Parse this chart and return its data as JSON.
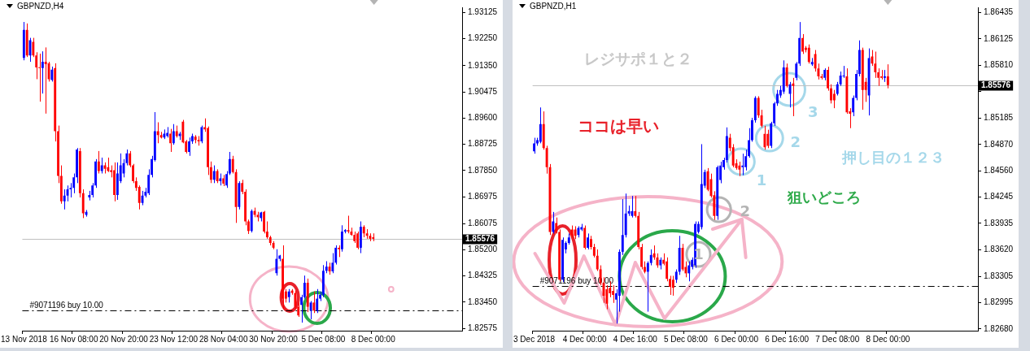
{
  "chart_data": [
    {
      "type": "candlestick",
      "title": "GBPNZD,H4",
      "categories": [
        "13 Nov 2018",
        null,
        null,
        null,
        null,
        null,
        null,
        null,
        null,
        null,
        null,
        null,
        null,
        null,
        null,
        null,
        "16 Nov 08:00",
        null,
        null,
        null,
        null,
        null,
        null,
        null,
        null,
        null,
        null,
        null,
        null,
        null,
        null,
        null,
        "20 Nov 20:00",
        null,
        null,
        null,
        null,
        null,
        null,
        null,
        null,
        null,
        null,
        null,
        null,
        null,
        null,
        null,
        "23 Nov 12:00",
        null,
        null,
        null,
        null,
        null,
        null,
        null,
        null,
        null,
        null,
        null,
        null,
        null,
        null,
        null,
        "28 Nov 04:00",
        null,
        null,
        null,
        null,
        null,
        null,
        null,
        null,
        null,
        null,
        null,
        null,
        null,
        null,
        null,
        "30 Nov 20:00",
        null,
        null,
        null,
        null,
        null,
        null,
        null,
        null,
        null,
        null,
        null,
        null,
        null,
        null,
        null,
        "5 Dec 08:00",
        null,
        null,
        null,
        null,
        null,
        null,
        null,
        null,
        null,
        null,
        null,
        null,
        null,
        null,
        null,
        "8 Dec 00:00",
        null,
        null,
        null,
        null,
        null,
        null,
        null,
        null,
        null,
        null,
        null,
        null,
        null,
        null,
        null,
        null,
        null,
        null,
        null,
        null,
        null,
        null,
        null,
        null,
        null,
        null,
        null,
        null
      ],
      "ohlc": [
        [
          1.9161,
          1.9281,
          1.9153,
          1.9255
        ],
        [
          1.9255,
          1.9276,
          1.9164,
          1.9169
        ],
        [
          1.9169,
          1.9228,
          1.9148,
          1.922
        ],
        [
          1.9215,
          1.9228,
          1.9164,
          1.9169
        ],
        [
          1.9169,
          1.918,
          1.909,
          1.9129
        ],
        [
          1.9129,
          1.9175,
          1.9015,
          1.9127
        ],
        [
          1.9127,
          1.9183,
          1.9042,
          1.9148
        ],
        [
          1.9148,
          1.9196,
          1.8975,
          1.914
        ],
        [
          1.9143,
          1.9148,
          1.9082,
          1.909
        ],
        [
          1.9087,
          1.9132,
          1.9082,
          1.9122
        ],
        [
          1.9127,
          1.9143,
          1.8882,
          1.8916
        ],
        [
          1.8916,
          1.8935,
          1.8743,
          1.8767
        ],
        [
          1.8767,
          1.8802,
          1.8674,
          1.8682
        ],
        [
          1.8682,
          1.8722,
          1.8655,
          1.8701
        ],
        [
          1.8701,
          1.8735,
          1.8682,
          1.8722
        ],
        [
          1.8722,
          1.8743,
          1.8695,
          1.8727
        ],
        [
          1.8727,
          1.8775,
          1.8709,
          1.8762
        ],
        [
          1.8762,
          1.886,
          1.8743,
          1.8855
        ],
        [
          1.885,
          1.886,
          1.8695,
          1.8709
        ],
        [
          1.8709,
          1.8722,
          1.8626,
          1.8642
        ],
        [
          1.8637,
          1.8653,
          1.8631,
          1.8647
        ],
        [
          1.8695,
          1.8717,
          1.8685,
          1.8703
        ],
        [
          1.8703,
          1.8743,
          1.8695,
          1.8735
        ],
        [
          1.8735,
          1.8823,
          1.8727,
          1.8815
        ],
        [
          1.8815,
          1.885,
          1.8775,
          1.8783
        ],
        [
          1.8783,
          1.8828,
          1.8775,
          1.8802
        ],
        [
          1.8802,
          1.8812,
          1.8775,
          1.8791
        ],
        [
          1.8796,
          1.8828,
          1.878,
          1.8783
        ],
        [
          1.8786,
          1.8802,
          1.8762,
          1.878
        ],
        [
          1.8786,
          1.8812,
          1.8682,
          1.8703
        ],
        [
          1.8703,
          1.8812,
          1.8687,
          1.8775
        ],
        [
          1.8749,
          1.8842,
          1.8743,
          1.8802
        ],
        [
          1.8775,
          1.8823,
          1.8762,
          1.881
        ],
        [
          1.881,
          1.8855,
          1.8802,
          1.8842
        ],
        [
          1.8842,
          1.885,
          1.8796,
          1.8802
        ],
        [
          1.8802,
          1.8807,
          1.8743,
          1.8749
        ],
        [
          1.8749,
          1.8762,
          1.8717,
          1.8727
        ],
        [
          1.873,
          1.8735,
          1.8655,
          1.8677
        ],
        [
          1.8677,
          1.8717,
          1.8669,
          1.8701
        ],
        [
          1.8701,
          1.8727,
          1.8695,
          1.8714
        ],
        [
          1.8709,
          1.8789,
          1.8703,
          1.877
        ],
        [
          1.877,
          1.8834,
          1.8762,
          1.8823
        ],
        [
          1.882,
          1.898,
          1.8815,
          1.8916
        ],
        [
          1.8916,
          1.8946,
          1.8876,
          1.8903
        ],
        [
          1.8903,
          1.8914,
          1.8892,
          1.8895
        ],
        [
          1.8895,
          1.8922,
          1.889,
          1.8908
        ],
        [
          1.89,
          1.893,
          1.8895,
          1.8911
        ],
        [
          1.8908,
          1.8924,
          1.8847,
          1.8876
        ],
        [
          1.8876,
          1.894,
          1.8871,
          1.8916
        ],
        [
          1.8916,
          1.8935,
          1.8895,
          1.89
        ],
        [
          1.89,
          1.8914,
          1.8887,
          1.8908
        ],
        [
          1.8948,
          1.8954,
          1.8876,
          1.8879
        ],
        [
          1.8882,
          1.8887,
          1.8842,
          1.8847
        ],
        [
          1.8847,
          1.8895,
          1.8834,
          1.8882
        ],
        [
          1.8882,
          1.8908,
          1.8874,
          1.89
        ],
        [
          1.8898,
          1.8903,
          1.8876,
          1.8887
        ],
        [
          1.8887,
          1.89,
          1.8868,
          1.8882
        ],
        [
          1.8882,
          1.8935,
          1.8876,
          1.893
        ],
        [
          1.893,
          1.8959,
          1.8914,
          1.8922
        ],
        [
          1.8927,
          1.8932,
          1.877,
          1.8796
        ],
        [
          1.8796,
          1.8815,
          1.8743,
          1.8754
        ],
        [
          1.8754,
          1.8802,
          1.8743,
          1.8783
        ],
        [
          1.8783,
          1.8789,
          1.8743,
          1.8749
        ],
        [
          1.8749,
          1.8775,
          1.8735,
          1.8759
        ],
        [
          1.8759,
          1.877,
          1.8733,
          1.8741
        ],
        [
          1.8735,
          1.8783,
          1.8727,
          1.8773
        ],
        [
          1.8775,
          1.8847,
          1.877,
          1.8823
        ],
        [
          1.8823,
          1.8834,
          1.8775,
          1.878
        ],
        [
          1.878,
          1.8789,
          1.861,
          1.8663
        ],
        [
          1.8663,
          1.8749,
          1.8655,
          1.8743
        ],
        [
          1.8743,
          1.8754,
          1.8706,
          1.8714
        ],
        [
          1.8714,
          1.8722,
          1.8602,
          1.8615
        ],
        [
          1.8615,
          1.8621,
          1.8573,
          1.8583
        ],
        [
          1.8583,
          1.8655,
          1.8578,
          1.865
        ],
        [
          1.865,
          1.8661,
          1.8629,
          1.8637
        ],
        [
          1.8637,
          1.8647,
          1.8615,
          1.8629
        ],
        [
          1.8626,
          1.8647,
          1.8615,
          1.8645
        ],
        [
          1.8647,
          1.865,
          1.8575,
          1.8581
        ],
        [
          1.8581,
          1.8615,
          1.8557,
          1.8562
        ],
        [
          1.8562,
          1.8567,
          1.8535,
          1.8543
        ],
        [
          1.8543,
          1.8549,
          1.8522,
          1.8527
        ],
        [
          1.8442,
          1.8522,
          1.8434,
          1.849
        ],
        [
          1.849,
          1.8503,
          1.8482,
          1.8501
        ],
        [
          1.849,
          1.8535,
          1.8322,
          1.8357
        ],
        [
          1.8381,
          1.8389,
          1.8344,
          1.8357
        ],
        [
          1.8362,
          1.8389,
          1.8344,
          1.8381
        ],
        [
          1.8384,
          1.8389,
          1.837,
          1.8376
        ],
        [
          1.8376,
          1.8384,
          1.8322,
          1.833
        ],
        [
          1.833,
          1.8344,
          1.8296,
          1.8301
        ],
        [
          1.8336,
          1.837,
          1.8277,
          1.8362
        ],
        [
          1.8362,
          1.8434,
          1.8357,
          1.841
        ],
        [
          1.841,
          1.8424,
          1.8312,
          1.833
        ],
        [
          1.8317,
          1.8349,
          1.8288,
          1.8344
        ],
        [
          1.8344,
          1.8381,
          1.8309,
          1.8317
        ],
        [
          1.8317,
          1.8389,
          1.8309,
          1.8357
        ],
        [
          1.8357,
          1.8381,
          1.8349,
          1.837
        ],
        [
          1.837,
          1.8469,
          1.8362,
          1.845
        ],
        [
          1.845,
          1.8482,
          1.8442,
          1.8464
        ],
        [
          1.8464,
          1.8477,
          1.8437,
          1.8448
        ],
        [
          1.8448,
          1.8509,
          1.8442,
          1.8477
        ],
        [
          1.8477,
          1.8535,
          1.8471,
          1.8527
        ],
        [
          1.8527,
          1.8535,
          1.8496,
          1.8522
        ],
        [
          1.8522,
          1.8602,
          1.8514,
          1.8581
        ],
        [
          1.8581,
          1.8589,
          1.8575,
          1.8586
        ],
        [
          1.8586,
          1.8634,
          1.8575,
          1.8581
        ],
        [
          1.8581,
          1.8594,
          1.8567,
          1.857
        ],
        [
          1.857,
          1.8581,
          1.8543,
          1.8549
        ],
        [
          1.8575,
          1.8581,
          1.8522,
          1.8527
        ],
        [
          1.8527,
          1.8615,
          1.8509,
          1.8597
        ],
        [
          1.8597,
          1.8602,
          1.8562,
          1.8575
        ],
        [
          1.8575,
          1.8589,
          1.8557,
          1.8567
        ],
        [
          1.8567,
          1.8575,
          1.8549,
          1.8557
        ],
        [
          1.8562,
          1.8575,
          1.8549,
          1.8557
        ],
        null,
        null,
        null,
        null,
        null,
        null,
        null,
        null,
        null,
        null,
        null,
        null,
        null,
        null,
        null,
        null,
        null,
        null,
        null,
        null,
        null,
        null,
        null,
        null,
        null,
        null,
        null,
        null
      ],
      "colors": [
        "#0000ff",
        "#ff0000",
        "#0000ff",
        "#ff0000",
        "#ff0000",
        "#ff0000",
        "#0000ff",
        "#ff0000",
        "#ff0000",
        "#0000ff",
        "#ff0000",
        "#ff0000",
        "#ff0000",
        "#0000ff",
        "#0000ff",
        "#0000ff",
        "#0000ff",
        "#0000ff",
        "#ff0000",
        "#ff0000",
        "#0000ff",
        "#0000ff",
        "#0000ff",
        "#0000ff",
        "#ff0000",
        "#0000ff",
        "#ff0000",
        "#ff0000",
        "#ff0000",
        "#ff0000",
        "#0000ff",
        "#0000ff",
        "#0000ff",
        "#0000ff",
        "#ff0000",
        "#ff0000",
        "#ff0000",
        "#ff0000",
        "#0000ff",
        "#0000ff",
        "#0000ff",
        "#0000ff",
        "#0000ff",
        "#ff0000",
        "#ff0000",
        "#0000ff",
        "#0000ff",
        "#ff0000",
        "#0000ff",
        "#ff0000",
        "#0000ff",
        "#ff0000",
        "#ff0000",
        "#0000ff",
        "#0000ff",
        "#ff0000",
        "#ff0000",
        "#0000ff",
        "#ff0000",
        "#ff0000",
        "#ff0000",
        "#0000ff",
        "#ff0000",
        "#0000ff",
        "#ff0000",
        "#0000ff",
        "#0000ff",
        "#ff0000",
        "#ff0000",
        "#0000ff",
        "#ff0000",
        "#ff0000",
        "#ff0000",
        "#0000ff",
        "#ff0000",
        "#ff0000",
        "#0000ff",
        "#ff0000",
        "#ff0000",
        "#ff0000",
        "#ff0000",
        "#0000ff",
        "#0000ff",
        "#ff0000",
        "#ff0000",
        "#0000ff",
        "#ff0000",
        "#ff0000",
        "#ff0000",
        "#0000ff",
        "#0000ff",
        "#ff0000",
        "#0000ff",
        "#ff0000",
        "#0000ff",
        "#0000ff",
        "#0000ff",
        "#0000ff",
        "#ff0000",
        "#0000ff",
        "#0000ff",
        "#ff0000",
        "#0000ff",
        "#0000ff",
        "#ff0000",
        "#ff0000",
        "#ff0000",
        "#ff0000",
        "#0000ff",
        "#ff0000",
        "#ff0000",
        "#ff0000",
        "#ff0000",
        null,
        null,
        null,
        null,
        null,
        null,
        null,
        null,
        null,
        null,
        null,
        null,
        null,
        null,
        null,
        null,
        null,
        null,
        null,
        null,
        null,
        null,
        null,
        null,
        null,
        null,
        null,
        null
      ],
      "ylim": [
        1.825,
        1.933
      ],
      "yticks": [
        {
          "value": 1.93125,
          "label": "1.93125"
        },
        {
          "value": 1.9225,
          "label": "1.92250"
        },
        {
          "value": 1.9135,
          "label": "1.91350"
        },
        {
          "value": 1.90475,
          "label": "1.90475"
        },
        {
          "value": 1.896,
          "label": "1.89600"
        },
        {
          "value": 1.88725,
          "label": "1.88725"
        },
        {
          "value": 1.8785,
          "label": "1.87850"
        },
        {
          "value": 1.86975,
          "label": "1.86975"
        },
        {
          "value": 1.86075,
          "label": "1.86075"
        },
        {
          "value": 1.852,
          "label": "1.85200"
        },
        {
          "value": 1.84325,
          "label": "1.84325"
        },
        {
          "value": 1.8345,
          "label": "1.83450"
        },
        {
          "value": 1.82575,
          "label": "1.82575"
        }
      ],
      "grid": false,
      "ref_lines": [
        {
          "axis": "y",
          "value": 1.85576,
          "label": "1.85576",
          "color": "#c0c0c0",
          "line_style": "solid"
        },
        {
          "axis": "y",
          "value": 1.8319,
          "label": "#9071196 buy 10.00",
          "color": "#000000",
          "line_style": "dashed"
        }
      ]
    },
    {
      "type": "candlestick",
      "title": "GBPNZD,H1",
      "categories": [
        "3 Dec 2018",
        null,
        null,
        null,
        null,
        null,
        null,
        null,
        null,
        null,
        null,
        null,
        null,
        null,
        null,
        null,
        "4 Dec 00:00",
        null,
        null,
        null,
        null,
        null,
        null,
        null,
        null,
        null,
        null,
        null,
        null,
        null,
        null,
        null,
        "4 Dec 16:00",
        null,
        null,
        null,
        null,
        null,
        null,
        null,
        null,
        null,
        null,
        null,
        null,
        null,
        null,
        null,
        "5 Dec 08:00",
        null,
        null,
        null,
        null,
        null,
        null,
        null,
        null,
        null,
        null,
        null,
        null,
        null,
        null,
        null,
        "6 Dec 00:00",
        null,
        null,
        null,
        null,
        null,
        null,
        null,
        null,
        null,
        null,
        null,
        null,
        null,
        null,
        null,
        "6 Dec 16:00",
        null,
        null,
        null,
        null,
        null,
        null,
        null,
        null,
        null,
        null,
        null,
        null,
        null,
        null,
        null,
        "7 Dec 08:00",
        null,
        null,
        null,
        null,
        null,
        null,
        null,
        null,
        null,
        null,
        null,
        null,
        null,
        null,
        null,
        "8 Dec 00:00",
        null,
        null,
        null,
        null,
        null,
        null,
        null,
        null,
        null,
        null,
        null,
        null,
        null,
        null,
        null,
        null,
        null,
        null,
        null,
        null,
        null,
        null,
        null,
        null,
        null,
        null,
        null,
        null
      ],
      "ohlc": [
        [
          1.8479,
          1.84951,
          1.84762,
          1.84885
        ],
        [
          1.84885,
          1.84951,
          1.84856,
          1.84923
        ],
        [
          1.84904,
          1.85311,
          1.84885,
          1.85112
        ],
        [
          1.85112,
          1.85264,
          1.84809,
          1.84828
        ],
        [
          1.84828,
          1.84856,
          1.84525,
          1.84601
        ],
        [
          1.84601,
          1.84639,
          1.83796,
          1.83833
        ],
        [
          1.83833,
          1.8407,
          1.83814,
          1.83957
        ],
        [
          1.83938,
          1.84004,
          1.83814,
          1.83833
        ],
        [
          1.83833,
          1.83862,
          1.83246,
          1.83265
        ],
        [
          1.83265,
          1.83767,
          1.83237,
          1.83739
        ],
        [
          1.83625,
          1.8372,
          1.83578,
          1.83701
        ],
        [
          1.83701,
          1.83814,
          1.83682,
          1.83767
        ],
        [
          1.83862,
          1.83909,
          1.83767,
          1.83796
        ],
        [
          1.83862,
          1.839,
          1.83748,
          1.83786
        ],
        [
          1.83796,
          1.839,
          1.83767,
          1.83881
        ],
        [
          1.83862,
          1.83928,
          1.83843,
          1.8389
        ],
        [
          1.83881,
          1.83909,
          1.83625,
          1.83644
        ],
        [
          1.83644,
          1.83814,
          1.83625,
          1.83767
        ],
        [
          1.83748,
          1.83786,
          1.83625,
          1.83653
        ],
        [
          1.83653,
          1.83691,
          1.8353,
          1.83549
        ],
        [
          1.83549,
          1.83625,
          1.83369,
          1.83388
        ],
        [
          1.83388,
          1.83436,
          1.83199,
          1.83227
        ],
        [
          1.83227,
          1.83294,
          1.8299,
          1.83076
        ],
        [
          1.83151,
          1.83199,
          1.82915,
          1.82981
        ],
        [
          1.8317,
          1.83246,
          1.83057,
          1.83104
        ],
        [
          1.83132,
          1.83199,
          1.8299,
          1.83085
        ],
        [
          1.83028,
          1.83151,
          1.82744,
          1.83104
        ],
        [
          1.83076,
          1.83625,
          1.82886,
          1.83597
        ],
        [
          1.83597,
          1.84222,
          1.83559,
          1.83796
        ],
        [
          1.83796,
          1.84288,
          1.83767,
          1.84051
        ],
        [
          1.84051,
          1.84146,
          1.84023,
          1.8408
        ],
        [
          1.84023,
          1.8426,
          1.84004,
          1.8408
        ],
        [
          1.8408,
          1.8426,
          1.84004,
          1.84023
        ],
        [
          1.84023,
          1.8407,
          1.83625,
          1.83653
        ],
        [
          1.83653,
          1.83691,
          1.83388,
          1.83417
        ],
        [
          1.83417,
          1.83483,
          1.83341,
          1.8336
        ],
        [
          1.8336,
          1.83483,
          1.82886,
          1.83464
        ],
        [
          1.83464,
          1.83625,
          1.83436,
          1.83559
        ],
        [
          1.83578,
          1.83672,
          1.83502,
          1.8353
        ],
        [
          1.8353,
          1.83578,
          1.83407,
          1.83436
        ],
        [
          1.83436,
          1.8353,
          1.83388,
          1.83502
        ],
        [
          1.83502,
          1.83578,
          1.83436,
          1.83455
        ],
        [
          1.83483,
          1.8353,
          1.83246,
          1.83275
        ],
        [
          1.83275,
          1.83312,
          1.83085,
          1.8318
        ],
        [
          1.83265,
          1.83312,
          1.83076,
          1.8317
        ],
        [
          1.83265,
          1.83388,
          1.83227,
          1.8336
        ],
        [
          1.8336,
          1.83786,
          1.83322,
          1.83644
        ],
        [
          1.83644,
          1.83691,
          1.83369,
          1.83388
        ],
        [
          1.83417,
          1.83483,
          1.83294,
          1.83341
        ],
        [
          1.83341,
          1.83483,
          1.83246,
          1.83436
        ],
        [
          1.83417,
          1.8353,
          1.83388,
          1.83502
        ],
        [
          1.83436,
          1.83957,
          1.83407,
          1.83928
        ],
        [
          1.83833,
          1.83957,
          1.83814,
          1.83928
        ],
        [
          1.8389,
          1.84875,
          1.83862,
          1.84402
        ],
        [
          1.84383,
          1.84572,
          1.84354,
          1.84544
        ],
        [
          1.84553,
          1.84591,
          1.84316,
          1.84335
        ],
        [
          1.84459,
          1.84525,
          1.84241,
          1.8426
        ],
        [
          1.84269,
          1.84316,
          1.83976,
          1.84023
        ],
        [
          1.84023,
          1.8462,
          1.83976,
          1.84601
        ],
        [
          1.84449,
          1.84667,
          1.84411,
          1.8462
        ],
        [
          1.84601,
          1.84714,
          1.84572,
          1.84686
        ],
        [
          1.84686,
          1.85074,
          1.84657,
          1.8497
        ],
        [
          1.84951,
          1.84998,
          1.8479,
          1.84828
        ],
        [
          1.84837,
          1.84875,
          1.84601,
          1.8462
        ],
        [
          1.84648,
          1.84695,
          1.84572,
          1.84591
        ],
        [
          1.8462,
          1.84667,
          1.84496,
          1.84572
        ],
        [
          1.84601,
          1.84762,
          1.84506,
          1.8462
        ],
        [
          1.84601,
          1.84809,
          1.84563,
          1.84733
        ],
        [
          1.84733,
          1.85065,
          1.84714,
          1.84923
        ],
        [
          1.84923,
          1.85188,
          1.84904,
          1.8516
        ],
        [
          1.8516,
          1.85444,
          1.85131,
          1.85425
        ],
        [
          1.85425,
          1.85444,
          1.85188,
          1.85216
        ],
        [
          1.85216,
          1.85283,
          1.85074,
          1.85093
        ],
        [
          1.84998,
          1.85093,
          1.84809,
          1.84837
        ],
        [
          1.84998,
          1.85046,
          1.84828,
          1.84856
        ],
        [
          1.84856,
          1.85141,
          1.84828,
          1.85122
        ],
        [
          1.85122,
          1.85377,
          1.85093,
          1.85358
        ],
        [
          1.85358,
          1.85519,
          1.8533,
          1.85472
        ],
        [
          1.85453,
          1.85567,
          1.85425,
          1.85519
        ],
        [
          1.855,
          1.8587,
          1.85472,
          1.85785
        ],
        [
          1.85785,
          1.85832,
          1.85548,
          1.85567
        ],
        [
          1.85472,
          1.85614,
          1.85311,
          1.85586
        ],
        [
          1.85595,
          1.85662,
          1.85207,
          1.85567
        ],
        [
          1.85662,
          1.85851,
          1.85633,
          1.85832
        ],
        [
          1.85832,
          1.86325,
          1.85804,
          1.86135
        ],
        [
          1.86135,
          1.86182,
          1.85946,
          1.85974
        ],
        [
          1.86021,
          1.8604,
          1.85965,
          1.85993
        ],
        [
          1.86021,
          1.86059,
          1.85832,
          1.85851
        ],
        [
          1.85823,
          1.85898,
          1.85804,
          1.85851
        ],
        [
          1.85946,
          1.85993,
          1.85737,
          1.85775
        ],
        [
          1.85775,
          1.85832,
          1.85643,
          1.8568
        ],
        [
          1.8568,
          1.85709,
          1.85643,
          1.85662
        ],
        [
          1.85662,
          1.85775,
          1.85633,
          1.85756
        ],
        [
          1.85756,
          1.85794,
          1.8551,
          1.85538
        ],
        [
          1.85538,
          1.85586,
          1.85358,
          1.85396
        ],
        [
          1.85472,
          1.85519,
          1.85302,
          1.85396
        ],
        [
          1.85472,
          1.85614,
          1.85453,
          1.85586
        ],
        [
          1.85586,
          1.85737,
          1.85567,
          1.8569
        ],
        [
          1.8568,
          1.85804,
          1.85662,
          1.8569
        ],
        [
          1.8568,
          1.85775,
          1.85235,
          1.85254
        ],
        [
          1.85264,
          1.85302,
          1.85065,
          1.85235
        ],
        [
          1.85254,
          1.85453,
          1.85207,
          1.85425
        ],
        [
          1.85425,
          1.85756,
          1.85396,
          1.85709
        ],
        [
          1.85709,
          1.86107,
          1.8568,
          1.85993
        ],
        [
          1.85993,
          1.86021,
          1.85283,
          1.85519
        ],
        [
          1.85614,
          1.85662,
          1.85377,
          1.85519
        ],
        [
          1.85453,
          1.86012,
          1.85216,
          1.85898
        ],
        [
          1.85917,
          1.85993,
          1.85804,
          1.85832
        ],
        [
          1.85832,
          1.85974,
          1.85662,
          1.85728
        ],
        [
          1.85728,
          1.85775,
          1.85567,
          1.85662
        ],
        [
          1.8568,
          1.85756,
          1.85643,
          1.85662
        ],
        [
          1.85662,
          1.85756,
          1.85614,
          1.8568
        ],
        [
          1.8568,
          1.85823,
          1.85538,
          1.85576
        ],
        null,
        null,
        null,
        null,
        null,
        null,
        null,
        null,
        null,
        null,
        null,
        null,
        null,
        null,
        null,
        null,
        null,
        null,
        null,
        null,
        null,
        null,
        null,
        null,
        null,
        null,
        null,
        null
      ],
      "colors": [
        "#0000ff",
        "#0000ff",
        "#0000ff",
        "#ff0000",
        "#ff0000",
        "#ff0000",
        "#0000ff",
        "#ff0000",
        "#ff0000",
        "#0000ff",
        "#0000ff",
        "#0000ff",
        "#ff0000",
        "#ff0000",
        "#0000ff",
        "#0000ff",
        "#ff0000",
        "#0000ff",
        "#ff0000",
        "#ff0000",
        "#ff0000",
        "#ff0000",
        "#ff0000",
        "#ff0000",
        "#ff0000",
        "#ff0000",
        "#0000ff",
        "#0000ff",
        "#0000ff",
        "#0000ff",
        "#0000ff",
        "#0000ff",
        "#ff0000",
        "#ff0000",
        "#ff0000",
        "#ff0000",
        "#0000ff",
        "#0000ff",
        "#ff0000",
        "#ff0000",
        "#0000ff",
        "#ff0000",
        "#ff0000",
        "#ff0000",
        "#ff0000",
        "#0000ff",
        "#0000ff",
        "#ff0000",
        "#ff0000",
        "#0000ff",
        "#0000ff",
        "#0000ff",
        "#0000ff",
        "#0000ff",
        "#0000ff",
        "#ff0000",
        "#ff0000",
        "#ff0000",
        "#0000ff",
        "#0000ff",
        "#0000ff",
        "#0000ff",
        "#ff0000",
        "#ff0000",
        "#ff0000",
        "#ff0000",
        "#0000ff",
        "#0000ff",
        "#0000ff",
        "#0000ff",
        "#0000ff",
        "#ff0000",
        "#ff0000",
        "#ff0000",
        "#ff0000",
        "#0000ff",
        "#0000ff",
        "#0000ff",
        "#0000ff",
        "#0000ff",
        "#ff0000",
        "#0000ff",
        "#ff0000",
        "#0000ff",
        "#0000ff",
        "#ff0000",
        "#ff0000",
        "#ff0000",
        "#0000ff",
        "#ff0000",
        "#ff0000",
        "#ff0000",
        "#0000ff",
        "#ff0000",
        "#ff0000",
        "#ff0000",
        "#0000ff",
        "#0000ff",
        "#0000ff",
        "#ff0000",
        "#ff0000",
        "#0000ff",
        "#0000ff",
        "#0000ff",
        "#ff0000",
        "#ff0000",
        "#0000ff",
        "#ff0000",
        "#ff0000",
        "#ff0000",
        "#ff0000",
        "#0000ff",
        "#ff0000",
        null,
        null,
        null,
        null,
        null,
        null,
        null,
        null,
        null,
        null,
        null,
        null,
        null,
        null,
        null,
        null,
        null,
        null,
        null,
        null,
        null,
        null,
        null,
        null,
        null,
        null,
        null,
        null
      ],
      "ylim": [
        1.8266,
        1.865
      ],
      "yticks": [
        {
          "value": 1.86435,
          "label": "1.86435"
        },
        {
          "value": 1.86125,
          "label": "1.86125"
        },
        {
          "value": 1.8581,
          "label": "1.85810"
        },
        {
          "value": 1.855,
          "label": null
        },
        {
          "value": 1.85185,
          "label": "1.85185"
        },
        {
          "value": 1.8487,
          "label": "1.84870"
        },
        {
          "value": 1.8456,
          "label": "1.84560"
        },
        {
          "value": 1.84245,
          "label": "1.84245"
        },
        {
          "value": 1.83935,
          "label": "1.83935"
        },
        {
          "value": 1.8362,
          "label": "1.83620"
        },
        {
          "value": 1.83305,
          "label": "1.83305"
        },
        {
          "value": 1.82995,
          "label": "1.82995"
        },
        {
          "value": 1.8268,
          "label": "1.82680"
        }
      ],
      "grid": false,
      "ref_lines": [
        {
          "axis": "y",
          "value": 1.85576,
          "label": "1.85576",
          "color": "#c0c0c0",
          "line_style": "solid"
        },
        {
          "axis": "y",
          "value": 1.8319,
          "label": "#9071196 buy 10.00",
          "color": "#000000",
          "line_style": "dashed"
        }
      ],
      "annotations": [
        "レジサポ１と２",
        "ココは早い",
        "押し目の１２３",
        "狙いどころ",
        "1",
        "2",
        "3",
        "1",
        "2"
      ]
    }
  ]
}
